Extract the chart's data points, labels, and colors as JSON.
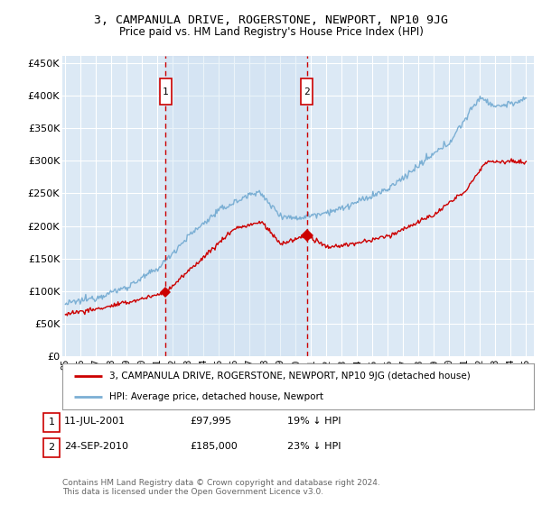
{
  "title": "3, CAMPANULA DRIVE, ROGERSTONE, NEWPORT, NP10 9JG",
  "subtitle": "Price paid vs. HM Land Registry's House Price Index (HPI)",
  "yticks": [
    0,
    50000,
    100000,
    150000,
    200000,
    250000,
    300000,
    350000,
    400000,
    450000
  ],
  "ytick_labels": [
    "£0",
    "£50K",
    "£100K",
    "£150K",
    "£200K",
    "£250K",
    "£300K",
    "£350K",
    "£400K",
    "£450K"
  ],
  "bg_color": "#dce9f5",
  "grid_color": "#ffffff",
  "hpi_color": "#7bafd4",
  "price_color": "#cc0000",
  "sale1_price": 97995,
  "sale1_x": 2001.53,
  "sale2_price": 185000,
  "sale2_x": 2010.73,
  "legend_line1": "3, CAMPANULA DRIVE, ROGERSTONE, NEWPORT, NP10 9JG (detached house)",
  "legend_line2": "HPI: Average price, detached house, Newport",
  "table_row1": [
    "1",
    "11-JUL-2001",
    "£97,995",
    "19% ↓ HPI"
  ],
  "table_row2": [
    "2",
    "24-SEP-2010",
    "£185,000",
    "23% ↓ HPI"
  ],
  "footnote": "Contains HM Land Registry data © Crown copyright and database right 2024.\nThis data is licensed under the Open Government Licence v3.0.",
  "xmin": 1994.8,
  "xmax": 2025.5,
  "ymin": 0,
  "ymax": 462000,
  "shade_color": "#c8ddf0"
}
